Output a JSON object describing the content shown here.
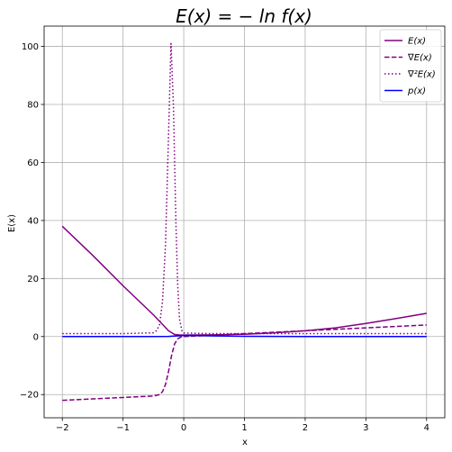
{
  "chart_data": {
    "type": "line",
    "title": "E(x) = − ln f(x)",
    "xlabel": "x",
    "ylabel": "E(x)",
    "xlim": [
      -2.3,
      4.3
    ],
    "ylim": [
      -28,
      107
    ],
    "xticks": [
      -2,
      -1,
      0,
      1,
      2,
      3,
      4
    ],
    "yticks": [
      -20,
      0,
      20,
      40,
      60,
      80,
      100
    ],
    "grid": true,
    "legend_position": "top-right",
    "series": [
      {
        "name": "E(x)",
        "color": "#800080",
        "style": "solid",
        "x": [
          -2.0,
          -1.5,
          -1.0,
          -0.5,
          -0.35,
          -0.25,
          -0.15,
          -0.05,
          0.0,
          0.5,
          1.0,
          1.5,
          2.0,
          2.5,
          3.0,
          3.5,
          4.0
        ],
        "y": [
          38.0,
          28.0,
          17.5,
          7.5,
          4.2,
          2.0,
          0.7,
          0.5,
          0.5,
          0.6,
          0.8,
          1.3,
          2.0,
          3.0,
          4.5,
          6.2,
          8.0
        ]
      },
      {
        "name": "∇E(x)",
        "color": "#800080",
        "style": "dashed",
        "x": [
          -2.0,
          -1.5,
          -1.0,
          -0.5,
          -0.4,
          -0.35,
          -0.3,
          -0.25,
          -0.2,
          -0.15,
          -0.1,
          -0.05,
          0.0,
          0.5,
          1.0,
          1.5,
          2.0,
          2.5,
          3.0,
          3.5,
          4.0
        ],
        "y": [
          -22.0,
          -21.5,
          -21.0,
          -20.5,
          -20.0,
          -19.0,
          -16.5,
          -12.0,
          -6.5,
          -2.5,
          -0.8,
          -0.2,
          0.0,
          0.5,
          1.0,
          1.5,
          2.0,
          2.5,
          3.0,
          3.5,
          4.0
        ]
      },
      {
        "name": "∇²E(x)",
        "color": "#800080",
        "style": "dotted",
        "x": [
          -2.0,
          -1.0,
          -0.5,
          -0.45,
          -0.4,
          -0.35,
          -0.3,
          -0.25,
          -0.21,
          -0.17,
          -0.13,
          -0.1,
          -0.07,
          -0.03,
          0.0,
          0.5,
          1.0,
          2.0,
          3.0,
          4.0
        ],
        "y": [
          1.0,
          1.0,
          1.3,
          2.0,
          4.0,
          12.0,
          32.0,
          70.0,
          101.0,
          80.0,
          40.0,
          18.0,
          6.0,
          2.0,
          1.2,
          1.0,
          1.0,
          1.0,
          1.0,
          1.0
        ]
      },
      {
        "name": "p(x)",
        "color": "#0000ff",
        "style": "solid",
        "x": [
          -2.0,
          -1.0,
          -0.5,
          -0.25,
          0.0,
          0.25,
          0.5,
          1.0,
          2.0,
          3.0,
          4.0
        ],
        "y": [
          0.0,
          0.0,
          0.0,
          0.05,
          0.4,
          0.35,
          0.25,
          0.1,
          0.0,
          0.0,
          0.0
        ]
      }
    ]
  }
}
